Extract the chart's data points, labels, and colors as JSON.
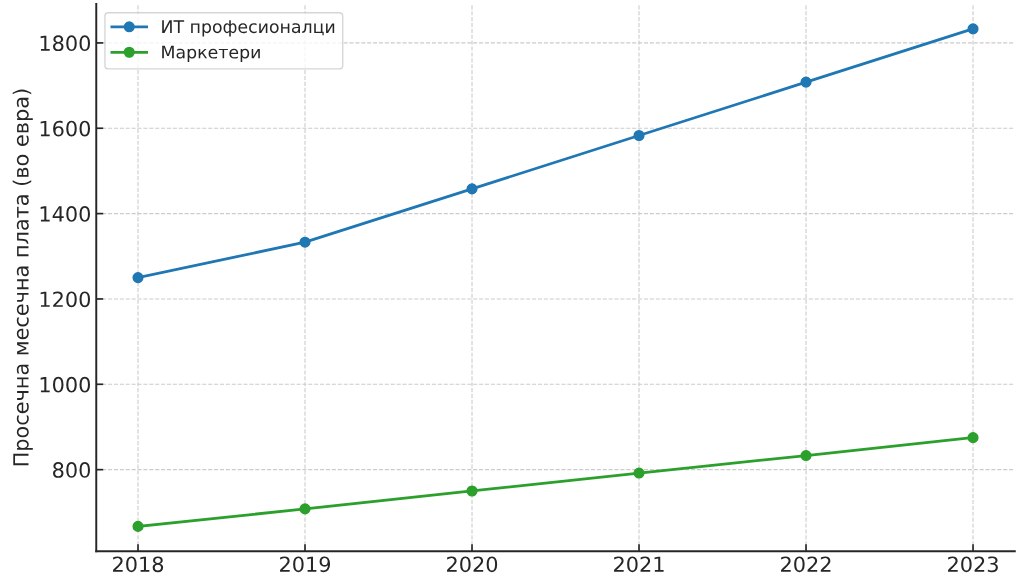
{
  "chart_data": {
    "type": "line",
    "ylabel": "Просечна месечна плата (во евра)",
    "x": [
      2018,
      2019,
      2020,
      2021,
      2022,
      2023
    ],
    "series": [
      {
        "name": "ИТ професионалци",
        "color": "#1f77b4",
        "values": [
          1250,
          1333,
          1458,
          1583,
          1708,
          1833
        ]
      },
      {
        "name": "Маркетери",
        "color": "#2ca02c",
        "values": [
          667,
          708,
          750,
          792,
          833,
          875
        ]
      }
    ],
    "xlim": [
      2017.75,
      2023.25
    ],
    "xticks": [
      2018,
      2019,
      2020,
      2021,
      2022,
      2023
    ],
    "ylim": [
      609,
      1891
    ],
    "yticks": [
      800,
      1000,
      1200,
      1400,
      1600,
      1800
    ],
    "grid": true,
    "legend": "top left",
    "marker": "circle",
    "line_style": "solid"
  }
}
